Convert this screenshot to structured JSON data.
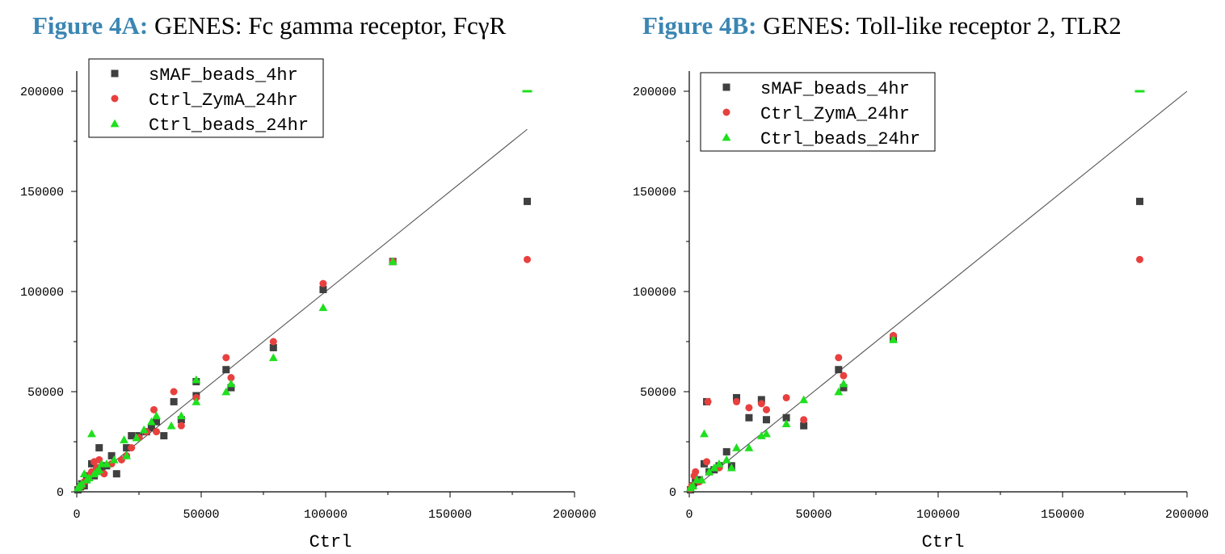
{
  "colors": {
    "series1": "#404040",
    "series2": "#e8403e",
    "series3": "#1ee01e",
    "fit_line": "#555555",
    "title_accent": "#3b86b3"
  },
  "chart_data": [
    {
      "type": "scatter",
      "title_prefix": "Figure 4A:",
      "title": "GENES: Fc gamma receptor, FcγR",
      "xlabel": "Ctrl",
      "ylabel": "",
      "xlim": [
        0,
        200000
      ],
      "ylim": [
        0,
        200000
      ],
      "xticks": [
        0,
        50000,
        100000,
        150000,
        200000
      ],
      "yticks": [
        0,
        50000,
        100000,
        150000,
        200000
      ],
      "legend_position": "top-left",
      "fit_line": [
        [
          0,
          0
        ],
        [
          181000,
          181000
        ]
      ],
      "series": [
        {
          "name": "sMAF_beads_4hr",
          "marker": "square",
          "points": [
            [
              500,
              1000
            ],
            [
              1500,
              2500
            ],
            [
              2000,
              4000
            ],
            [
              3000,
              3000
            ],
            [
              4000,
              6000
            ],
            [
              5000,
              8000
            ],
            [
              6000,
              14000
            ],
            [
              7000,
              8000
            ],
            [
              8000,
              12000
            ],
            [
              9000,
              22000
            ],
            [
              10000,
              11000
            ],
            [
              12000,
              13000
            ],
            [
              14000,
              18000
            ],
            [
              16000,
              9000
            ],
            [
              20000,
              22000
            ],
            [
              22000,
              28000
            ],
            [
              25000,
              28000
            ],
            [
              28000,
              30000
            ],
            [
              30000,
              32000
            ],
            [
              32000,
              35000
            ],
            [
              35000,
              28000
            ],
            [
              39000,
              45000
            ],
            [
              42000,
              36000
            ],
            [
              48000,
              48000
            ],
            [
              48000,
              55000
            ],
            [
              60000,
              61000
            ],
            [
              62000,
              52000
            ],
            [
              79000,
              72000
            ],
            [
              99000,
              101000
            ],
            [
              127000,
              115000
            ],
            [
              181000,
              145000
            ]
          ]
        },
        {
          "name": "Ctrl_ZymA_24hr",
          "marker": "circle",
          "points": [
            [
              1000,
              2000
            ],
            [
              2000,
              3000
            ],
            [
              3000,
              5000
            ],
            [
              5000,
              8000
            ],
            [
              6000,
              10000
            ],
            [
              7000,
              15000
            ],
            [
              8000,
              12000
            ],
            [
              9000,
              16000
            ],
            [
              11000,
              9000
            ],
            [
              14000,
              14000
            ],
            [
              18000,
              16000
            ],
            [
              20000,
              18000
            ],
            [
              22000,
              22000
            ],
            [
              25000,
              27000
            ],
            [
              28000,
              30000
            ],
            [
              31000,
              41000
            ],
            [
              32000,
              30000
            ],
            [
              39000,
              50000
            ],
            [
              42000,
              33000
            ],
            [
              48000,
              47000
            ],
            [
              60000,
              67000
            ],
            [
              62000,
              57000
            ],
            [
              79000,
              75000
            ],
            [
              99000,
              104000
            ],
            [
              127000,
              115000
            ],
            [
              181000,
              116000
            ]
          ]
        },
        {
          "name": "Ctrl_beads_24hr",
          "marker": "triangle",
          "points": [
            [
              500,
              2000
            ],
            [
              1000,
              3000
            ],
            [
              2000,
              4000
            ],
            [
              3000,
              9000
            ],
            [
              4000,
              6000
            ],
            [
              5000,
              7000
            ],
            [
              6000,
              29000
            ],
            [
              7000,
              9000
            ],
            [
              8000,
              10000
            ],
            [
              9000,
              11000
            ],
            [
              10000,
              14000
            ],
            [
              12000,
              14000
            ],
            [
              15000,
              16000
            ],
            [
              19000,
              26000
            ],
            [
              20000,
              18000
            ],
            [
              24000,
              27000
            ],
            [
              27000,
              31000
            ],
            [
              30000,
              35000
            ],
            [
              32000,
              38000
            ],
            [
              38000,
              33000
            ],
            [
              42000,
              38000
            ],
            [
              48000,
              45000
            ],
            [
              48000,
              56000
            ],
            [
              60000,
              50000
            ],
            [
              62000,
              54000
            ],
            [
              79000,
              67000
            ],
            [
              99000,
              92000
            ],
            [
              127000,
              115000
            ],
            [
              181000,
              200000
            ]
          ]
        }
      ]
    },
    {
      "type": "scatter",
      "title_prefix": "Figure 4B:",
      "title": "GENES: Toll-like receptor 2, TLR2",
      "xlabel": "Ctrl",
      "ylabel": "",
      "xlim": [
        0,
        200000
      ],
      "ylim": [
        0,
        200000
      ],
      "xticks": [
        0,
        50000,
        100000,
        150000,
        200000
      ],
      "yticks": [
        0,
        50000,
        100000,
        150000,
        200000
      ],
      "legend_position": "top-left",
      "fit_line": [
        [
          0,
          0
        ],
        [
          200000,
          200000
        ]
      ],
      "series": [
        {
          "name": "sMAF_beads_4hr",
          "marker": "square",
          "points": [
            [
              500,
              1000
            ],
            [
              1500,
              3000
            ],
            [
              2500,
              5000
            ],
            [
              4000,
              6000
            ],
            [
              6000,
              14000
            ],
            [
              7000,
              45000
            ],
            [
              8000,
              10000
            ],
            [
              10000,
              11000
            ],
            [
              12000,
              13000
            ],
            [
              15000,
              20000
            ],
            [
              17000,
              13000
            ],
            [
              19000,
              47000
            ],
            [
              24000,
              37000
            ],
            [
              29000,
              46000
            ],
            [
              31000,
              36000
            ],
            [
              39000,
              37000
            ],
            [
              46000,
              33000
            ],
            [
              60000,
              61000
            ],
            [
              62000,
              52000
            ],
            [
              82000,
              77000
            ],
            [
              181000,
              145000
            ]
          ]
        },
        {
          "name": "Ctrl_ZymA_24hr",
          "marker": "circle",
          "points": [
            [
              500,
              1500
            ],
            [
              1000,
              3000
            ],
            [
              2000,
              8000
            ],
            [
              2500,
              10000
            ],
            [
              4000,
              5000
            ],
            [
              7000,
              15000
            ],
            [
              7500,
              45000
            ],
            [
              12000,
              12000
            ],
            [
              19000,
              45000
            ],
            [
              24000,
              42000
            ],
            [
              29000,
              44000
            ],
            [
              31000,
              41000
            ],
            [
              39000,
              47000
            ],
            [
              46000,
              36000
            ],
            [
              60000,
              67000
            ],
            [
              62000,
              58000
            ],
            [
              82000,
              78000
            ],
            [
              181000,
              116000
            ]
          ]
        },
        {
          "name": "Ctrl_beads_24hr",
          "marker": "triangle",
          "points": [
            [
              500,
              2000
            ],
            [
              1500,
              3000
            ],
            [
              3000,
              6000
            ],
            [
              5000,
              6000
            ],
            [
              6000,
              29000
            ],
            [
              8000,
              10000
            ],
            [
              10000,
              12000
            ],
            [
              12000,
              14000
            ],
            [
              15000,
              16000
            ],
            [
              17000,
              12000
            ],
            [
              19000,
              22000
            ],
            [
              24000,
              22000
            ],
            [
              29000,
              28000
            ],
            [
              31000,
              29000
            ],
            [
              39000,
              34000
            ],
            [
              46000,
              46000
            ],
            [
              60000,
              50000
            ],
            [
              62000,
              54000
            ],
            [
              82000,
              76000
            ],
            [
              181000,
              200000
            ]
          ]
        }
      ]
    }
  ]
}
